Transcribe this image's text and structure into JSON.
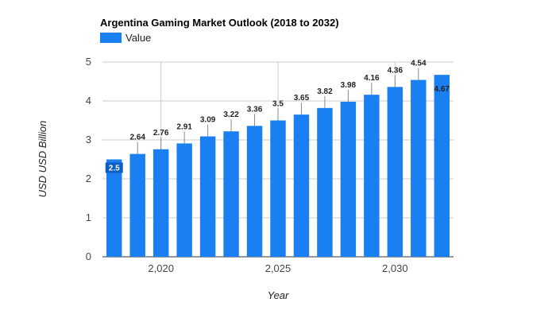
{
  "chart_data": {
    "type": "bar",
    "title": "Argentina Gaming Market Outlook (2018 to 2032)",
    "xlabel": "Year",
    "ylabel": "USD USD Billion",
    "ylim": [
      0,
      5
    ],
    "y_ticks": [
      "0",
      "1",
      "2",
      "3",
      "4",
      "5"
    ],
    "x_tick_labels": [
      {
        "x": 2020,
        "label": "2,020"
      },
      {
        "x": 2025,
        "label": "2,025"
      },
      {
        "x": 2030,
        "label": "2,030"
      }
    ],
    "x": [
      2018,
      2019,
      2020,
      2021,
      2022,
      2023,
      2024,
      2025,
      2026,
      2027,
      2028,
      2029,
      2030,
      2031,
      2032
    ],
    "series": [
      {
        "name": "Value",
        "color": "#1a7ff0",
        "values": [
          2.5,
          2.64,
          2.76,
          2.91,
          3.09,
          3.22,
          3.36,
          3.5,
          3.65,
          3.82,
          3.98,
          4.16,
          4.36,
          4.54,
          4.67
        ],
        "labels": [
          "2.5",
          "2.64",
          "2.76",
          "2.91",
          "3.09",
          "3.22",
          "3.36",
          "3.5",
          "3.65",
          "3.82",
          "3.98",
          "4.16",
          "4.36",
          "4.54",
          "4.67"
        ]
      }
    ],
    "legend": "top-left",
    "grid": true
  }
}
